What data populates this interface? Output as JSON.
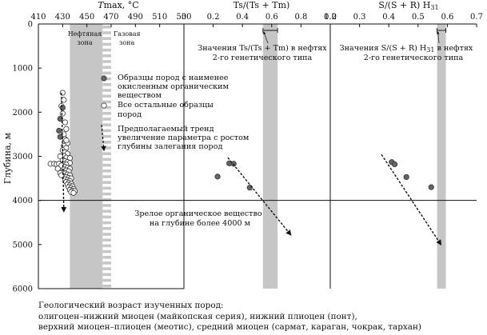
{
  "chart_data": {
    "type": "scatter",
    "y_axis": {
      "label": "Глубина, м",
      "min": 0,
      "max": 6000,
      "ticks": [
        "0",
        "1000",
        "2000",
        "3000",
        "4000",
        "5000",
        "6000"
      ]
    },
    "panels": [
      {
        "title_italic": "T",
        "title_rest": "max, °C",
        "xlim": [
          410,
          530
        ],
        "x_ticks": [
          "410",
          "430",
          "450",
          "470",
          "490",
          "510",
          "530"
        ],
        "oil_zone": {
          "label_line1": "Нефтяная",
          "label_line2": "зона",
          "range": [
            436,
            463
          ]
        },
        "gas_zone": {
          "label_line1": "Газовая",
          "label_line2": "зона",
          "range": [
            463,
            470
          ]
        },
        "less_oxidized_samples": [
          {
            "x": 428,
            "y": 2150
          },
          {
            "x": 427,
            "y": 2420
          },
          {
            "x": 428,
            "y": 2560
          },
          {
            "x": 430,
            "y": 1900
          }
        ],
        "other_samples": [
          {
            "x": 430,
            "y": 1560
          },
          {
            "x": 431,
            "y": 1720
          },
          {
            "x": 429,
            "y": 1860
          },
          {
            "x": 430,
            "y": 2030
          },
          {
            "x": 432,
            "y": 2230
          },
          {
            "x": 433,
            "y": 2380
          },
          {
            "x": 431,
            "y": 2500
          },
          {
            "x": 432,
            "y": 2610
          },
          {
            "x": 434,
            "y": 2700
          },
          {
            "x": 431,
            "y": 2760
          },
          {
            "x": 433,
            "y": 2810
          },
          {
            "x": 430,
            "y": 2860
          },
          {
            "x": 432,
            "y": 2910
          },
          {
            "x": 434,
            "y": 2940
          },
          {
            "x": 431,
            "y": 2990
          },
          {
            "x": 433,
            "y": 3030
          },
          {
            "x": 436,
            "y": 3040
          },
          {
            "x": 430,
            "y": 3080
          },
          {
            "x": 432,
            "y": 3110
          },
          {
            "x": 434,
            "y": 3130
          },
          {
            "x": 436,
            "y": 3150
          },
          {
            "x": 431,
            "y": 3170
          },
          {
            "x": 433,
            "y": 3190
          },
          {
            "x": 420,
            "y": 3170
          },
          {
            "x": 423,
            "y": 3170
          },
          {
            "x": 425,
            "y": 3180
          },
          {
            "x": 427,
            "y": 3170
          },
          {
            "x": 429,
            "y": 3210
          },
          {
            "x": 432,
            "y": 3240
          },
          {
            "x": 434,
            "y": 3260
          },
          {
            "x": 436,
            "y": 3280
          },
          {
            "x": 431,
            "y": 3300
          },
          {
            "x": 433,
            "y": 3320
          },
          {
            "x": 435,
            "y": 3340
          },
          {
            "x": 430,
            "y": 3360
          },
          {
            "x": 428,
            "y": 3380
          },
          {
            "x": 432,
            "y": 3390
          },
          {
            "x": 434,
            "y": 3410
          },
          {
            "x": 436,
            "y": 3430
          },
          {
            "x": 431,
            "y": 3450
          },
          {
            "x": 433,
            "y": 3470
          },
          {
            "x": 435,
            "y": 3490
          },
          {
            "x": 437,
            "y": 3500
          },
          {
            "x": 432,
            "y": 3520
          },
          {
            "x": 434,
            "y": 3540
          },
          {
            "x": 436,
            "y": 3560
          },
          {
            "x": 433,
            "y": 3580
          },
          {
            "x": 435,
            "y": 3600
          },
          {
            "x": 437,
            "y": 3620
          },
          {
            "x": 434,
            "y": 3640
          },
          {
            "x": 436,
            "y": 3660
          },
          {
            "x": 438,
            "y": 3680
          },
          {
            "x": 435,
            "y": 3700
          },
          {
            "x": 437,
            "y": 3720
          },
          {
            "x": 439,
            "y": 3740
          },
          {
            "x": 436,
            "y": 3760
          },
          {
            "x": 438,
            "y": 3780
          },
          {
            "x": 440,
            "y": 3790
          },
          {
            "x": 437,
            "y": 3810
          },
          {
            "x": 439,
            "y": 3830
          },
          {
            "x": 433,
            "y": 2640
          },
          {
            "x": 428,
            "y": 3000
          },
          {
            "x": 426,
            "y": 3280
          },
          {
            "x": 429,
            "y": 3430
          }
        ],
        "trend": {
          "from": [
            429,
            1560
          ],
          "to": [
            431,
            4250
          ]
        },
        "legend": [
          {
            "symbol": "filled",
            "lines": [
              "Образцы пород с наименее",
              "окисленным органическим",
              "веществом"
            ]
          },
          {
            "symbol": "open",
            "lines": [
              "Все остальные образцы",
              "пород"
            ]
          },
          {
            "symbol": "arrow",
            "lines": [
              "Предполагаемый тренд",
              "увеличение параметра с ростом",
              "глубины залегания пород"
            ]
          }
        ],
        "mature_note": [
          "Зрелое органическое вещество",
          "на глубине более 4000 м"
        ]
      },
      {
        "title": "Ts/(Ts + Tm)",
        "xlim": [
          0,
          1.0
        ],
        "x_ticks": [
          "0",
          "0.2",
          "0.4",
          "0.6",
          "0.8",
          "1.0"
        ],
        "band": [
          0.54,
          0.64
        ],
        "band_note": [
          "Значения Ts/(Ts + Tm) в нефтях",
          "2-го генетического типа"
        ],
        "less_oxidized_samples": [
          {
            "x": 0.23,
            "y": 3460
          },
          {
            "x": 0.31,
            "y": 3160
          },
          {
            "x": 0.34,
            "y": 3170
          },
          {
            "x": 0.45,
            "y": 3710
          }
        ],
        "trend": {
          "from": [
            0.3,
            3030
          ],
          "to": [
            0.73,
            4780
          ]
        }
      },
      {
        "title_main": "S/(S + R) H",
        "title_sub": "31",
        "xlim": [
          0.2,
          0.7
        ],
        "x_ticks": [
          "0.2",
          "0.3",
          "0.4",
          "0.5",
          "0.6",
          "0.7"
        ],
        "band": [
          0.565,
          0.595
        ],
        "band_note_main": "Значения S/(S + R) H",
        "band_note_sub": "31",
        "band_note_tail": " в нефтях",
        "band_note_line2": "2-го генетического типа",
        "less_oxidized_samples": [
          {
            "x": 0.41,
            "y": 3130
          },
          {
            "x": 0.42,
            "y": 3180
          },
          {
            "x": 0.46,
            "y": 3470
          },
          {
            "x": 0.545,
            "y": 3700
          }
        ],
        "trend": {
          "from": [
            0.375,
            2960
          ],
          "to": [
            0.578,
            5000
          ]
        }
      }
    ],
    "reference_depth": 4000,
    "caption": [
      "Геологический возраст изученных пород:",
      "олигоцен–нижний миоцен (майкопская серия), нижний плиоцен (понт),",
      "верхний миоцен–плиоцен (меотис), средний миоцен (сармат, караган, чокрак, тархан)"
    ]
  }
}
